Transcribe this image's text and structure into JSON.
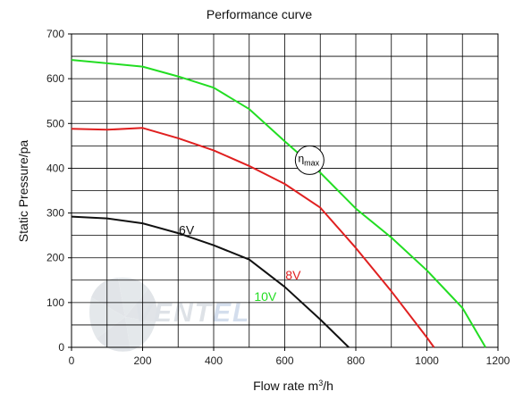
{
  "chart_data": {
    "type": "line",
    "title": "Performance curve",
    "xlabel": "Flow rate  m³/h",
    "ylabel": "Static  Pressure/pa",
    "xlim": [
      0,
      1200
    ],
    "ylim": [
      0,
      700
    ],
    "x_ticks": [
      0,
      200,
      400,
      600,
      800,
      1000,
      1200
    ],
    "y_ticks": [
      0,
      100,
      200,
      300,
      400,
      500,
      600,
      700
    ],
    "grid": true,
    "series": [
      {
        "name": "10V",
        "color": "#22dd22",
        "x": [
          0,
          200,
          300,
          400,
          500,
          600,
          700,
          800,
          900,
          1000,
          1100,
          1165
        ],
        "y": [
          642,
          627,
          605,
          580,
          532,
          460,
          390,
          310,
          245,
          172,
          88,
          0
        ]
      },
      {
        "name": "8V",
        "color": "#e02020",
        "x": [
          0,
          100,
          200,
          300,
          400,
          500,
          600,
          700,
          800,
          900,
          1000,
          1020
        ],
        "y": [
          488,
          486,
          490,
          467,
          440,
          405,
          365,
          312,
          222,
          125,
          22,
          0
        ]
      },
      {
        "name": "6V",
        "color": "#111111",
        "x": [
          0,
          100,
          200,
          300,
          400,
          500,
          600,
          700,
          780
        ],
        "y": [
          292,
          288,
          277,
          255,
          228,
          196,
          135,
          62,
          0
        ]
      }
    ],
    "annotations": [
      {
        "text": "η",
        "subscript": "max",
        "x": 670,
        "y": 418
      }
    ],
    "watermark": "VENTEL"
  }
}
